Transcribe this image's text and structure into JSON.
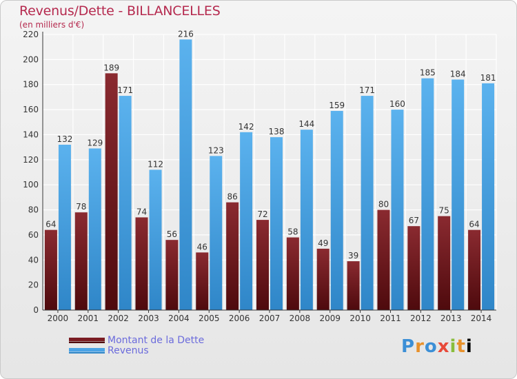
{
  "header": {
    "title": "Revenus/Dette - BILLANCELLES",
    "subtitle": "(en milliers d'€)"
  },
  "legend": {
    "debt_label": "Montant de la Dette",
    "revenue_label": "Revenus"
  },
  "logo": {
    "text": "Proxiti"
  },
  "colors": {
    "debt": "#7a1c22",
    "revenue": "#4aa3e6",
    "title": "#b5294e"
  },
  "chart_data": {
    "type": "bar",
    "title": "Revenus/Dette - BILLANCELLES",
    "ylabel": "(en milliers d'€)",
    "xlabel": "",
    "ylim": [
      0,
      220
    ],
    "yticks": [
      0,
      20,
      40,
      60,
      80,
      100,
      120,
      140,
      160,
      180,
      200,
      220
    ],
    "grid": true,
    "categories": [
      "2000",
      "2001",
      "2002",
      "2003",
      "2004",
      "2005",
      "2006",
      "2007",
      "2008",
      "2009",
      "2010",
      "2011",
      "2012",
      "2013",
      "2014"
    ],
    "series": [
      {
        "name": "Montant de la Dette",
        "values": [
          64,
          78,
          189,
          74,
          56,
          46,
          86,
          72,
          58,
          49,
          39,
          80,
          67,
          75,
          64
        ]
      },
      {
        "name": "Revenus",
        "values": [
          132,
          129,
          171,
          112,
          216,
          123,
          142,
          138,
          144,
          159,
          171,
          160,
          185,
          184,
          181
        ]
      }
    ]
  }
}
